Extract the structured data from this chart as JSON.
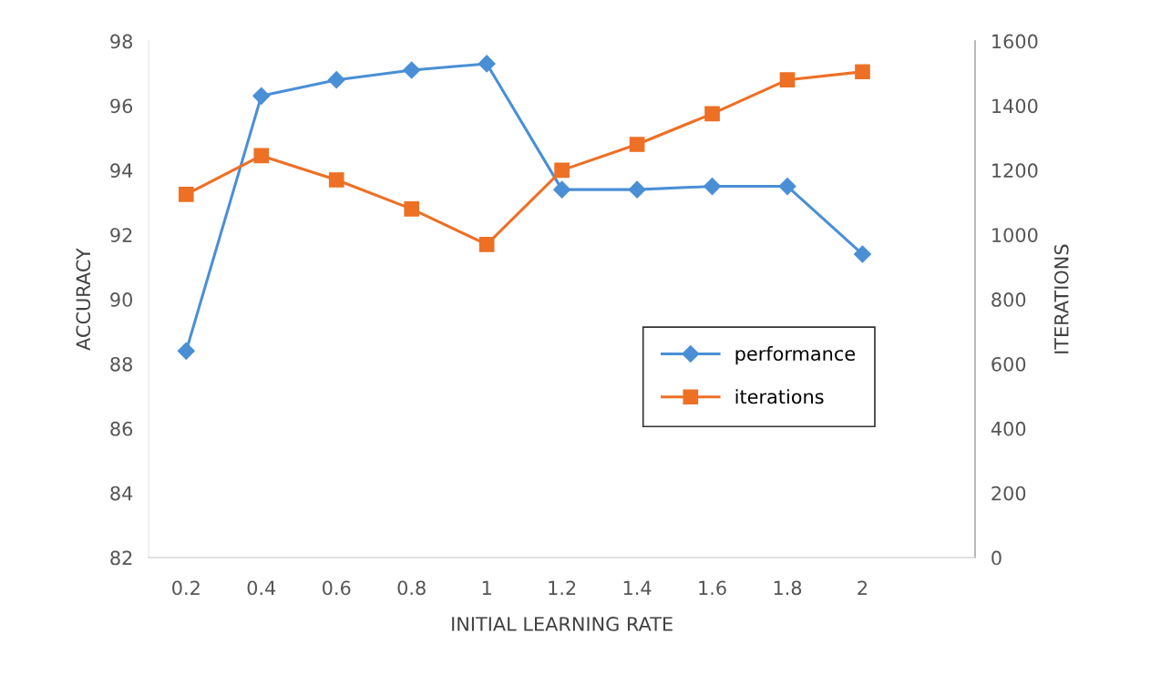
{
  "chart_data": {
    "type": "line",
    "xlabel": "INITIAL LEARNING RATE",
    "ylabel": "ACCURACY",
    "y2label": "ITERATIONS",
    "categories": [
      "0.2",
      "0.4",
      "0.6",
      "0.8",
      "1",
      "1.2",
      "1.4",
      "1.6",
      "1.8",
      "2",
      null
    ],
    "series": [
      {
        "name": "performance",
        "color": "#4a8fd6",
        "marker": "diamond",
        "values": [
          88.4,
          96.3,
          96.8,
          97.1,
          97.3,
          93.4,
          93.4,
          93.5,
          93.5,
          91.4,
          null
        ]
      },
      {
        "name": "iterations",
        "color": "#ed7025",
        "marker": "square",
        "axis": "y2",
        "values": [
          1125,
          1245,
          1170,
          1080,
          970,
          1200,
          1280,
          1375,
          1480,
          1505,
          null
        ]
      }
    ],
    "ylim": [
      82,
      98
    ],
    "yticks": [
      82,
      84,
      86,
      88,
      90,
      92,
      94,
      96,
      98
    ],
    "y2lim": [
      0,
      1600
    ],
    "y2ticks": [
      0,
      200,
      400,
      600,
      800,
      1000,
      1200,
      1400,
      1600
    ],
    "grid": false,
    "legend": "right"
  }
}
